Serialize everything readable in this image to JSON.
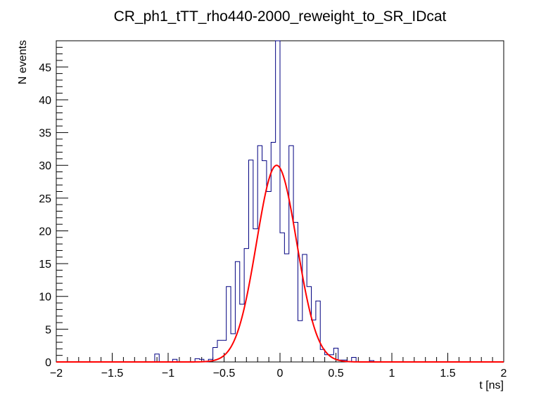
{
  "chart_data": {
    "type": "histogram",
    "title": "CR_ph1_tTT_rho440-2000_reweight_to_SR_IDcat",
    "xlabel": "t [ns]",
    "ylabel": "N events",
    "xlim": [
      -2,
      2
    ],
    "ylim": [
      0,
      49
    ],
    "x_ticks": [
      -2,
      -1.5,
      -1,
      -0.5,
      0,
      0.5,
      1,
      1.5,
      2
    ],
    "x_tick_labels": [
      "−2",
      "−1.5",
      "−1",
      "−0.5",
      "0",
      "0.5",
      "1",
      "1.5",
      "2"
    ],
    "y_ticks": [
      0,
      5,
      10,
      15,
      20,
      25,
      30,
      35,
      40,
      45
    ],
    "y_tick_labels": [
      "0",
      "5",
      "10",
      "15",
      "20",
      "25",
      "30",
      "35",
      "40",
      "45"
    ],
    "bin_width": 0.04,
    "series": [
      {
        "name": "histogram",
        "color": "#000080",
        "bin_low_edges": [
          -1.12,
          -0.96,
          -0.76,
          -0.72,
          -0.64,
          -0.6,
          -0.56,
          -0.52,
          -0.48,
          -0.44,
          -0.4,
          -0.36,
          -0.32,
          -0.28,
          -0.24,
          -0.2,
          -0.16,
          -0.12,
          -0.08,
          -0.04,
          0.0,
          0.04,
          0.08,
          0.12,
          0.16,
          0.2,
          0.24,
          0.28,
          0.32,
          0.36,
          0.4,
          0.44,
          0.48,
          0.52,
          0.56,
          0.64,
          0.8
        ],
        "values": [
          1.2,
          0.4,
          0.5,
          0.4,
          0.4,
          2.2,
          3.3,
          3.3,
          11.5,
          4.3,
          15.3,
          8.8,
          17.3,
          30.8,
          20.3,
          33.0,
          30.7,
          26.0,
          33.5,
          49.0,
          19.7,
          16.5,
          33.0,
          21.3,
          6.3,
          16.4,
          11.5,
          6.4,
          9.3,
          1.9,
          1.1,
          1.1,
          2.1,
          0.3,
          0.3,
          0.7,
          0.2
        ]
      },
      {
        "name": "gaussian fit",
        "color": "#ff0000",
        "type": "line",
        "amplitude": 30.0,
        "mean": -0.03,
        "sigma": 0.18
      }
    ]
  }
}
